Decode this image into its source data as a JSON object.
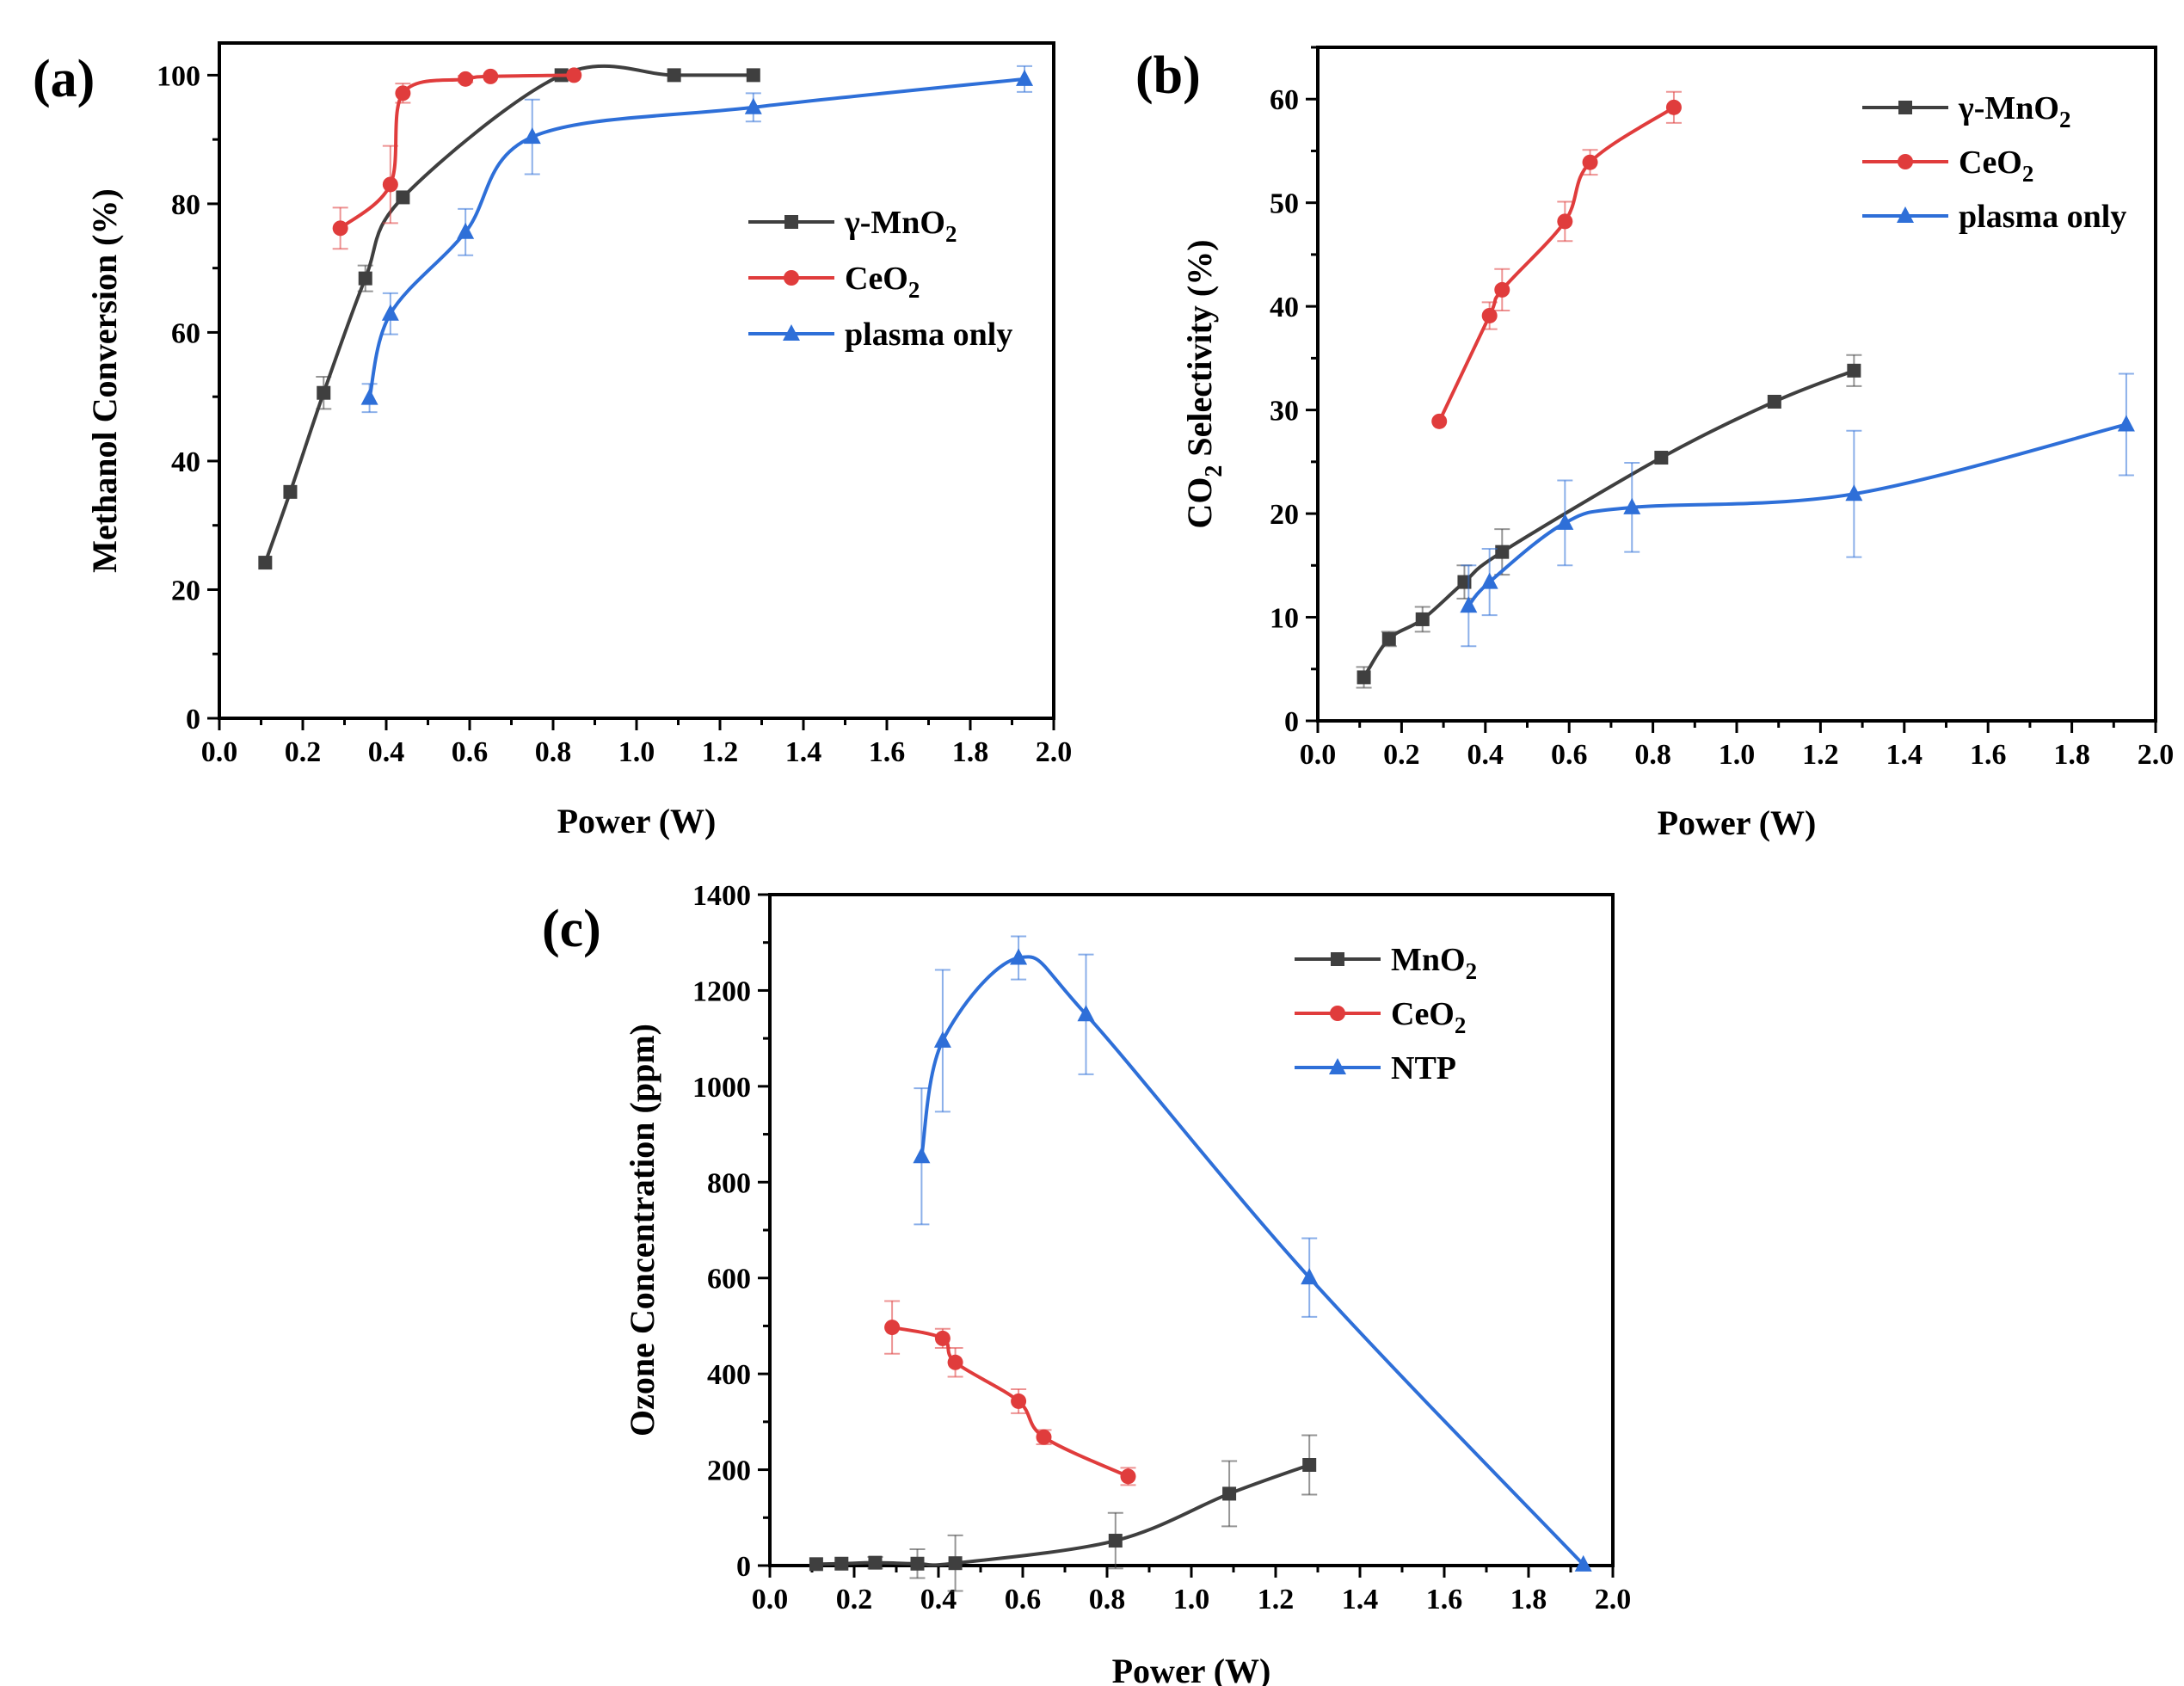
{
  "chart_data": [
    {
      "id": "a",
      "type": "line",
      "panel_label": "(a)",
      "title": "",
      "xlabel": "Power (W)",
      "ylabel": "Methanol Conversion (%)",
      "xlim": [
        0.0,
        2.0
      ],
      "ylim": [
        0,
        105
      ],
      "xticks": [
        "0.0",
        "0.2",
        "0.4",
        "0.6",
        "0.8",
        "1.0",
        "1.2",
        "1.4",
        "1.6",
        "1.8",
        "2.0"
      ],
      "yticks": [
        "0",
        "20",
        "40",
        "60",
        "80",
        "100"
      ],
      "legend_position": "center-right",
      "series": [
        {
          "name": "γ-MnO",
          "sub": "2",
          "color": "#3f3f3f",
          "marker": "square",
          "x": [
            0.11,
            0.17,
            0.25,
            0.35,
            0.44,
            0.82,
            1.09,
            1.28
          ],
          "y": [
            24.2,
            35.2,
            50.6,
            68.4,
            81.0,
            100.0,
            100.0,
            100.0
          ],
          "err": [
            0,
            0,
            2.5,
            2.0,
            0,
            0,
            0,
            0
          ]
        },
        {
          "name": "CeO",
          "sub": "2",
          "color": "#e03c3c",
          "marker": "circle",
          "x": [
            0.29,
            0.41,
            0.44,
            0.59,
            0.65,
            0.85
          ],
          "y": [
            76.2,
            83.0,
            97.2,
            99.4,
            99.8,
            100.0
          ],
          "err": [
            3.2,
            6.0,
            1.5,
            0.5,
            0,
            0
          ]
        },
        {
          "name": "plasma only",
          "sub": "",
          "color": "#2e6fd8",
          "marker": "triangle",
          "x": [
            0.36,
            0.41,
            0.59,
            0.75,
            1.28,
            1.93
          ],
          "y": [
            49.8,
            62.9,
            75.6,
            90.4,
            95.0,
            99.4
          ],
          "err": [
            2.2,
            3.2,
            3.6,
            5.8,
            2.2,
            2.0
          ]
        }
      ]
    },
    {
      "id": "b",
      "type": "line",
      "panel_label": "(b)",
      "title": "",
      "xlabel": "Power (W)",
      "ylabel_pre": "CO",
      "ylabel_sub": "2",
      "ylabel_post": " Selectivity (%)",
      "xlim": [
        0.0,
        2.0
      ],
      "ylim": [
        0,
        65
      ],
      "xticks": [
        "0.0",
        "0.2",
        "0.4",
        "0.6",
        "0.8",
        "1.0",
        "1.2",
        "1.4",
        "1.6",
        "1.8",
        "2.0"
      ],
      "yticks": [
        "0",
        "10",
        "20",
        "30",
        "40",
        "50",
        "60"
      ],
      "legend_position": "top-right",
      "series": [
        {
          "name": "γ-MnO",
          "sub": "2",
          "color": "#3f3f3f",
          "marker": "square",
          "x": [
            0.11,
            0.17,
            0.25,
            0.35,
            0.44,
            0.82,
            1.09,
            1.28
          ],
          "y": [
            4.2,
            7.9,
            9.8,
            13.4,
            16.3,
            25.4,
            30.8,
            33.8
          ],
          "err": [
            1.0,
            0.7,
            1.2,
            1.6,
            2.2,
            0,
            0,
            1.5
          ]
        },
        {
          "name": "CeO",
          "sub": "2",
          "color": "#e03c3c",
          "marker": "circle",
          "x": [
            0.29,
            0.41,
            0.44,
            0.59,
            0.65,
            0.85
          ],
          "y": [
            28.9,
            39.1,
            41.6,
            48.2,
            53.9,
            59.2
          ],
          "err": [
            0,
            1.3,
            2.0,
            1.9,
            1.2,
            1.5
          ]
        },
        {
          "name": "plasma only",
          "sub": "",
          "color": "#2e6fd8",
          "marker": "triangle",
          "x": [
            0.36,
            0.41,
            0.59,
            0.75,
            1.28,
            1.93
          ],
          "y": [
            11.1,
            13.4,
            19.1,
            20.6,
            21.9,
            28.6
          ],
          "err": [
            3.9,
            3.2,
            4.1,
            4.3,
            6.1,
            4.9
          ]
        }
      ]
    },
    {
      "id": "c",
      "type": "line",
      "panel_label": "(c)",
      "title": "",
      "xlabel": "Power (W)",
      "ylabel": "Ozone Concentration (ppm)",
      "xlim": [
        0.0,
        2.0
      ],
      "ylim": [
        0,
        1400
      ],
      "xticks": [
        "0.0",
        "0.2",
        "0.4",
        "0.6",
        "0.8",
        "1.0",
        "1.2",
        "1.4",
        "1.6",
        "1.8",
        "2.0"
      ],
      "yticks": [
        "0",
        "200",
        "400",
        "600",
        "800",
        "1000",
        "1200",
        "1400"
      ],
      "legend_position": "top-right",
      "series": [
        {
          "name": "MnO",
          "sub": "2",
          "color": "#3f3f3f",
          "marker": "square",
          "x": [
            0.11,
            0.17,
            0.25,
            0.35,
            0.44,
            0.82,
            1.09,
            1.28
          ],
          "y": [
            3,
            4,
            6,
            4,
            5,
            52,
            150,
            210
          ],
          "err": [
            0,
            0,
            12,
            30,
            58,
            58,
            68,
            62
          ]
        },
        {
          "name": "CeO",
          "sub": "2",
          "color": "#e03c3c",
          "marker": "circle",
          "x": [
            0.29,
            0.41,
            0.44,
            0.59,
            0.65,
            0.85
          ],
          "y": [
            497,
            474,
            424,
            343,
            268,
            186
          ],
          "err": [
            55,
            20,
            30,
            25,
            15,
            18
          ]
        },
        {
          "name": "NTP",
          "sub": "",
          "color": "#2e6fd8",
          "marker": "triangle",
          "x": [
            0.36,
            0.41,
            0.59,
            0.75,
            1.28,
            1.93
          ],
          "y": [
            854,
            1095,
            1268,
            1150,
            601,
            2
          ],
          "err": [
            142,
            148,
            45,
            125,
            82,
            0
          ]
        }
      ]
    }
  ]
}
